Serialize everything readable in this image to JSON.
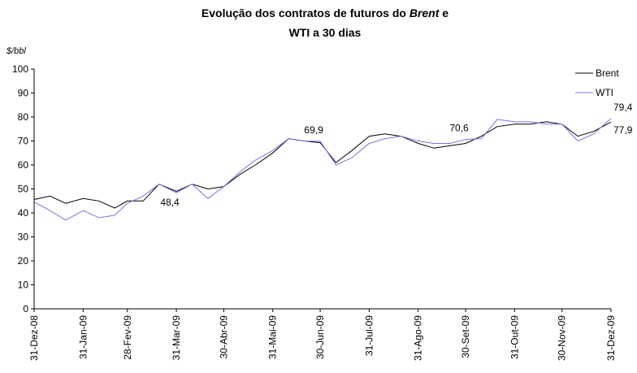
{
  "chart_data": {
    "type": "line",
    "title": {
      "line1": [
        "Evolução dos contratos de futuros do",
        "Brent",
        "e"
      ],
      "line2": "WTI a 30 dias"
    },
    "y_label": "$/bbl",
    "x": [
      "2008-12-31",
      "2009-01-10",
      "2009-01-20",
      "2009-01-31",
      "2009-02-10",
      "2009-02-20",
      "2009-02-28",
      "2009-03-10",
      "2009-03-20",
      "2009-03-31",
      "2009-04-10",
      "2009-04-20",
      "2009-04-30",
      "2009-05-10",
      "2009-05-20",
      "2009-05-31",
      "2009-06-10",
      "2009-06-20",
      "2009-06-30",
      "2009-07-10",
      "2009-07-20",
      "2009-07-31",
      "2009-08-10",
      "2009-08-20",
      "2009-08-31",
      "2009-09-10",
      "2009-09-20",
      "2009-09-30",
      "2009-10-10",
      "2009-10-20",
      "2009-10-31",
      "2009-11-10",
      "2009-11-20",
      "2009-11-30",
      "2009-12-10",
      "2009-12-20",
      "2009-12-31"
    ],
    "series": [
      {
        "name": "Brent",
        "color": "#000000",
        "values": [
          45.6,
          47,
          44,
          46,
          45,
          42,
          45,
          45,
          52,
          49,
          52,
          50,
          51,
          56,
          60,
          65,
          71,
          70,
          69.3,
          61,
          66,
          72,
          73,
          72,
          69,
          67,
          68,
          69,
          72,
          76,
          77,
          77,
          78,
          77,
          72,
          74,
          77.9
        ],
        "value_labels": [
          null,
          null,
          null,
          null,
          null,
          null,
          null,
          null,
          null,
          null,
          null,
          null,
          null,
          null,
          null,
          null,
          null,
          null,
          null,
          null,
          null,
          null,
          null,
          null,
          null,
          null,
          null,
          null,
          null,
          null,
          null,
          null,
          null,
          null,
          null,
          null,
          "77,9"
        ]
      },
      {
        "name": "WTI",
        "color": "#7373e6",
        "values": [
          44.6,
          41,
          37,
          41,
          38,
          39,
          44,
          47,
          52,
          48.4,
          52,
          46,
          51,
          57,
          62,
          66,
          71,
          70,
          69.9,
          60,
          63,
          69,
          71,
          72,
          70,
          69,
          69,
          70.6,
          71,
          79,
          78,
          78,
          77,
          77,
          70,
          73,
          79.4
        ],
        "value_labels": [
          null,
          null,
          null,
          null,
          null,
          null,
          null,
          null,
          null,
          "48,4",
          null,
          null,
          null,
          null,
          null,
          null,
          null,
          null,
          "69,9",
          null,
          null,
          null,
          null,
          null,
          null,
          null,
          null,
          "70,6",
          null,
          null,
          null,
          null,
          null,
          null,
          null,
          null,
          "79,4"
        ]
      }
    ],
    "xlim": [
      "2008-12-31",
      "2009-12-31"
    ],
    "xticks": [
      {
        "value": "2008-12-31",
        "label": "31-Dez-08"
      },
      {
        "value": "2009-01-31",
        "label": "31-Jan-09"
      },
      {
        "value": "2009-02-28",
        "label": "28-Fev-09"
      },
      {
        "value": "2009-03-31",
        "label": "31-Mar-09"
      },
      {
        "value": "2009-04-30",
        "label": "30-Abr-09"
      },
      {
        "value": "2009-05-31",
        "label": "31-Mai-09"
      },
      {
        "value": "2009-06-30",
        "label": "30-Jun-09"
      },
      {
        "value": "2009-07-31",
        "label": "31-Jul-09"
      },
      {
        "value": "2009-08-31",
        "label": "31-Ago-09"
      },
      {
        "value": "2009-09-30",
        "label": "30-Set-09"
      },
      {
        "value": "2009-10-31",
        "label": "31-Out-09"
      },
      {
        "value": "2009-11-30",
        "label": "30-Nov-09"
      },
      {
        "value": "2009-12-31",
        "label": "31-Dez-09"
      }
    ],
    "ylim": [
      0,
      100
    ],
    "yticks": [
      0,
      10,
      20,
      30,
      40,
      50,
      60,
      70,
      80,
      90,
      100
    ],
    "grid": false,
    "legend": "top-right"
  }
}
